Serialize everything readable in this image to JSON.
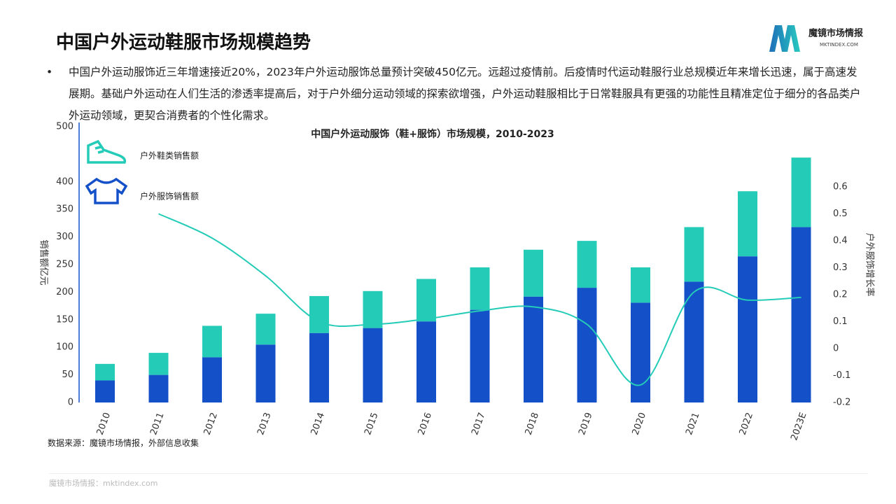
{
  "header": {
    "title": "中国户外运动鞋服市场规模趋势",
    "logo_name": "魔镜市场情报",
    "logo_url": "MKTINDEX.COM"
  },
  "bullet": "中国户外运动服饰近三年增速接近20%，2023年户外运动服饰总量预计突破450亿元。远超过疫情前。后疫情时代运动鞋服行业总规模近年来增长迅速，属于高速发展期。基础户外运动在人们生活的渗透率提高后，对于户外细分运动领域的探索欲增强，户外运动鞋服相比于日常鞋服具有更强的功能性且精准定位于细分的各品类户外运动领域，更契合消费者的个性化需求。",
  "chart_data": {
    "type": "bar",
    "stacked": true,
    "title": "中国户外运动服饰（鞋+服饰）市场规模，2010-2023",
    "y_label": "销售额亿元",
    "y2_label": "户外服饰增长率",
    "categories": [
      "2010",
      "2011",
      "2012",
      "2013",
      "2014",
      "2015",
      "2016",
      "2017",
      "2018",
      "2019",
      "2020",
      "2021",
      "2022",
      "2023E"
    ],
    "series": [
      {
        "name": "户外服饰销售额",
        "color": "#1450c8",
        "values": [
          40,
          50,
          82,
          105,
          126,
          135,
          147,
          168,
          192,
          208,
          181,
          219,
          265,
          318
        ]
      },
      {
        "name": "户外鞋类销售额",
        "color": "#24ccb8",
        "values": [
          30,
          40,
          57,
          56,
          67,
          67,
          77,
          77,
          85,
          85,
          64,
          99,
          118,
          126
        ]
      },
      {
        "name": "户外服饰增长率",
        "type": "line",
        "axis": "y2",
        "color": "#24ccb8",
        "values": [
          null,
          0.5,
          0.41,
          0.27,
          0.1,
          0.09,
          0.11,
          0.14,
          0.155,
          0.09,
          -0.135,
          0.21,
          0.18,
          0.19
        ]
      }
    ],
    "ylim": [
      0,
      500
    ],
    "yticks": [
      0,
      50,
      100,
      150,
      200,
      250,
      300,
      350,
      400,
      500
    ],
    "y2lim": [
      -0.2,
      0.6
    ],
    "y2ticks": [
      -0.2,
      -0.1,
      0,
      0.1,
      0.2,
      0.3,
      0.4,
      0.5,
      0.6
    ]
  },
  "source": "数据来源：魔镜市场情报，外部信息收集",
  "footer": "魔镜市场情报：mktindex.com"
}
